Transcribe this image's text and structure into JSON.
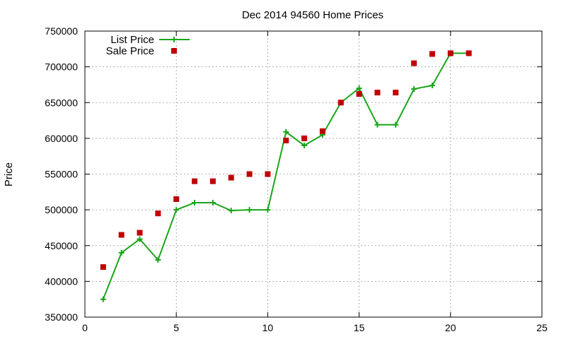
{
  "chart_data": {
    "type": "line",
    "title": "Dec 2014 94560 Home Prices",
    "xlabel": "",
    "ylabel": "Price",
    "xlim": [
      0,
      25
    ],
    "ylim": [
      350000,
      750000
    ],
    "x_ticks": [
      0,
      5,
      10,
      15,
      20,
      25
    ],
    "y_ticks": [
      350000,
      400000,
      450000,
      500000,
      550000,
      600000,
      650000,
      700000,
      750000
    ],
    "x_tick_labels": [
      "0",
      "5",
      "10",
      "15",
      "20",
      "25"
    ],
    "y_tick_labels": [
      "350000",
      "400000",
      "450000",
      "500000",
      "550000",
      "600000",
      "650000",
      "700000",
      "750000"
    ],
    "grid": true,
    "legend_position": "top-left",
    "series": [
      {
        "name": "List Price",
        "style": "line-with-plus-markers",
        "color": "#1aa51a",
        "x": [
          1,
          2,
          3,
          4,
          5,
          6,
          7,
          8,
          9,
          10,
          11,
          12,
          13,
          14,
          15,
          16,
          17,
          18,
          19,
          20,
          21
        ],
        "values": [
          375000,
          440000,
          459000,
          430000,
          500000,
          510000,
          510000,
          499000,
          500000,
          500000,
          609000,
          590000,
          605000,
          650000,
          670000,
          619000,
          619000,
          669000,
          674000,
          719000,
          719000
        ]
      },
      {
        "name": "Sale Price",
        "style": "square-markers",
        "color": "#c00000",
        "x": [
          1,
          2,
          3,
          4,
          5,
          6,
          7,
          8,
          9,
          10,
          11,
          12,
          13,
          14,
          15,
          16,
          17,
          18,
          19,
          20,
          21
        ],
        "values": [
          420000,
          465000,
          468000,
          495000,
          515000,
          540000,
          540000,
          545000,
          550000,
          550000,
          597000,
          600000,
          610000,
          650000,
          662000,
          664000,
          664000,
          705000,
          718000,
          719000,
          719000
        ]
      }
    ]
  }
}
